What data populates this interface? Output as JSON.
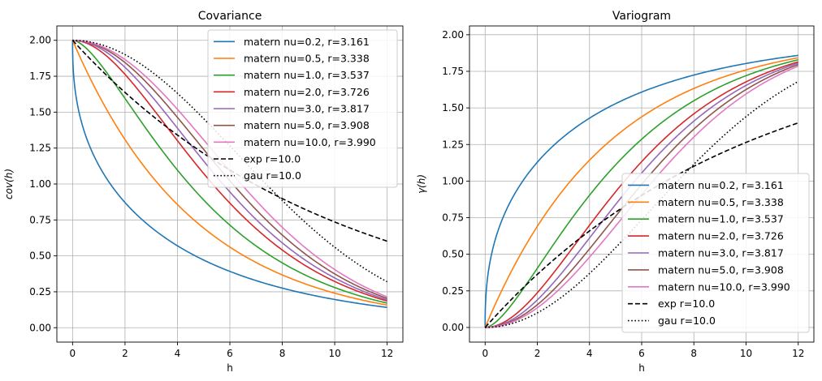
{
  "chart_data": [
    {
      "type": "line",
      "kind": "covariance",
      "title": "Covariance",
      "xlabel": "h",
      "ylabel": "cov(h)",
      "xlim": [
        -0.6,
        12.6
      ],
      "ylim": [
        -0.1,
        2.1
      ],
      "xticks": [
        0,
        2,
        4,
        6,
        8,
        10,
        12
      ],
      "yticks": [
        0.0,
        0.25,
        0.5,
        0.75,
        1.0,
        1.25,
        1.5,
        1.75,
        2.0
      ],
      "grid": true,
      "legend_position": "top-right",
      "series": [
        {
          "name": "matern nu=0.2, r=3.161",
          "model": "matern",
          "nu": 0.2,
          "r": 3.161,
          "color": "#1f77b4",
          "dash": "solid"
        },
        {
          "name": "matern nu=0.5, r=3.338",
          "model": "matern",
          "nu": 0.5,
          "r": 3.338,
          "color": "#ff7f0e",
          "dash": "solid"
        },
        {
          "name": "matern nu=1.0, r=3.537",
          "model": "matern",
          "nu": 1.0,
          "r": 3.537,
          "color": "#2ca02c",
          "dash": "solid"
        },
        {
          "name": "matern nu=2.0, r=3.726",
          "model": "matern",
          "nu": 2.0,
          "r": 3.726,
          "color": "#d62728",
          "dash": "solid"
        },
        {
          "name": "matern nu=3.0, r=3.817",
          "model": "matern",
          "nu": 3.0,
          "r": 3.817,
          "color": "#9467bd",
          "dash": "solid"
        },
        {
          "name": "matern nu=5.0, r=3.908",
          "model": "matern",
          "nu": 5.0,
          "r": 3.908,
          "color": "#8c564b",
          "dash": "solid"
        },
        {
          "name": "matern nu=10.0, r=3.990",
          "model": "matern",
          "nu": 10.0,
          "r": 3.99,
          "color": "#e377c2",
          "dash": "solid"
        },
        {
          "name": "exp r=10.0",
          "model": "exp",
          "r": 10.0,
          "color": "#000000",
          "dash": "dashed"
        },
        {
          "name": "gau r=10.0",
          "model": "gau",
          "r": 10.0,
          "color": "#000000",
          "dash": "dotted"
        }
      ]
    },
    {
      "type": "line",
      "kind": "variogram",
      "title": "Variogram",
      "xlabel": "h",
      "ylabel": "γ(h)",
      "xlim": [
        -0.6,
        12.6
      ],
      "ylim": [
        -0.1,
        2.06
      ],
      "xticks": [
        0,
        2,
        4,
        6,
        8,
        10,
        12
      ],
      "yticks": [
        0.0,
        0.25,
        0.5,
        0.75,
        1.0,
        1.25,
        1.5,
        1.75,
        2.0
      ],
      "grid": true,
      "legend_position": "bottom-right",
      "series": [
        {
          "name": "matern nu=0.2, r=3.161",
          "model": "matern",
          "nu": 0.2,
          "r": 3.161,
          "color": "#1f77b4",
          "dash": "solid"
        },
        {
          "name": "matern nu=0.5, r=3.338",
          "model": "matern",
          "nu": 0.5,
          "r": 3.338,
          "color": "#ff7f0e",
          "dash": "solid"
        },
        {
          "name": "matern nu=1.0, r=3.537",
          "model": "matern",
          "nu": 1.0,
          "r": 3.537,
          "color": "#2ca02c",
          "dash": "solid"
        },
        {
          "name": "matern nu=2.0, r=3.726",
          "model": "matern",
          "nu": 2.0,
          "r": 3.726,
          "color": "#d62728",
          "dash": "solid"
        },
        {
          "name": "matern nu=3.0, r=3.817",
          "model": "matern",
          "nu": 3.0,
          "r": 3.817,
          "color": "#9467bd",
          "dash": "solid"
        },
        {
          "name": "matern nu=5.0, r=3.908",
          "model": "matern",
          "nu": 5.0,
          "r": 3.908,
          "color": "#8c564b",
          "dash": "solid"
        },
        {
          "name": "matern nu=10.0, r=3.990",
          "model": "matern",
          "nu": 10.0,
          "r": 3.99,
          "color": "#e377c2",
          "dash": "solid"
        },
        {
          "name": "exp r=10.0",
          "model": "exp",
          "r": 10.0,
          "color": "#000000",
          "dash": "dashed"
        },
        {
          "name": "gau r=10.0",
          "model": "gau",
          "r": 10.0,
          "color": "#000000",
          "dash": "dotted"
        }
      ]
    }
  ]
}
